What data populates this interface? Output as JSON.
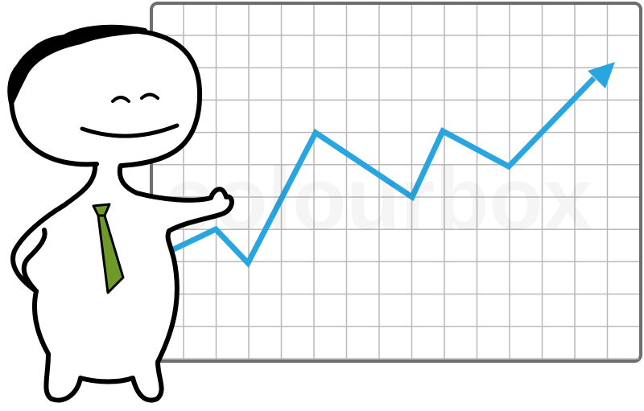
{
  "watermark": "colourbox"
}
